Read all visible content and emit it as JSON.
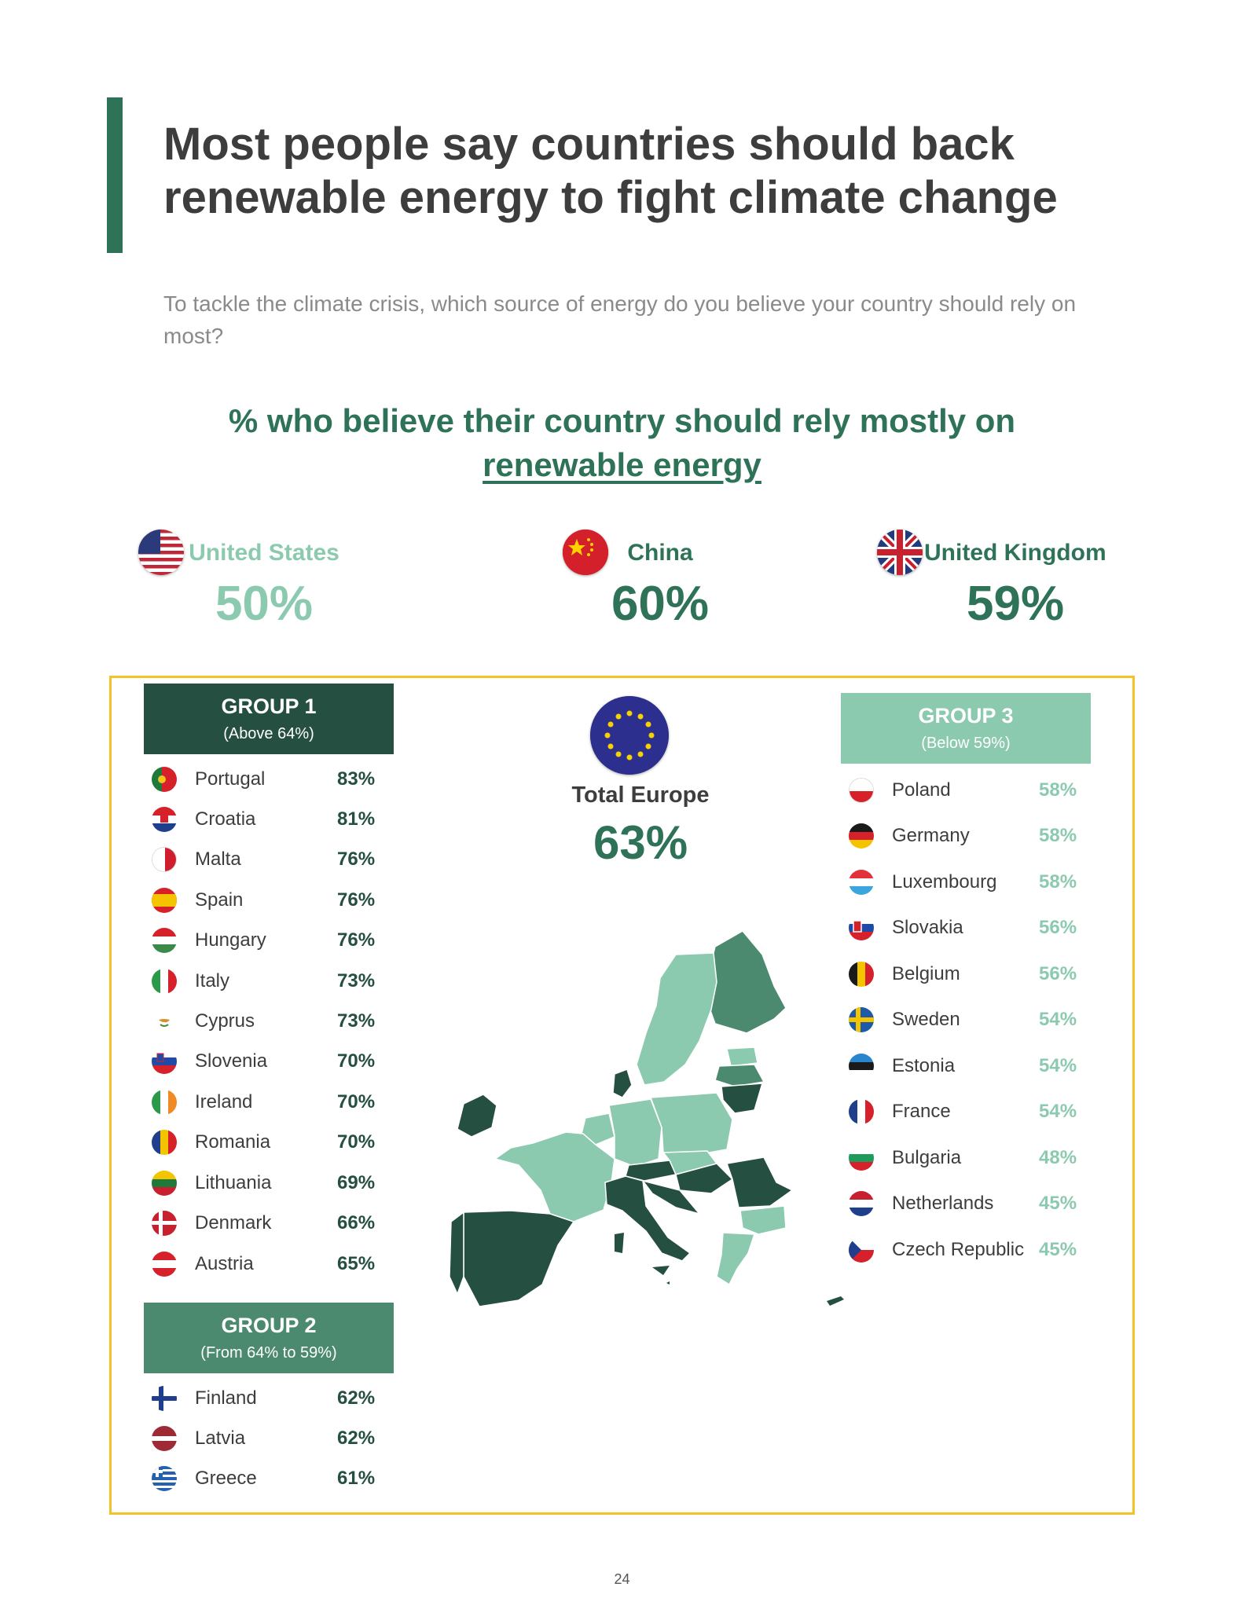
{
  "title": "Most people say countries should back renewable energy to fight climate change",
  "question": "To tackle the climate crisis, which source of energy do you believe your country should rely on most?",
  "subheading": {
    "prefix": "% who believe their country should rely mostly on",
    "emphasis": "renewable energy"
  },
  "highlights": [
    {
      "country": "United States",
      "value": "50%",
      "flag": "us-flag",
      "color": "#8ccab0"
    },
    {
      "country": "China",
      "value": "60%",
      "flag": "china-flag",
      "color": "#2e7358"
    },
    {
      "country": "United Kingdom",
      "value": "59%",
      "flag": "uk-flag",
      "color": "#2e7358"
    }
  ],
  "total_europe": {
    "label": "Total Europe",
    "value": "63%",
    "icon": "eu-flag-icon"
  },
  "groups": [
    {
      "title": "GROUP 1",
      "range": "(Above 64%)",
      "color": "#244f41",
      "rows": [
        {
          "country": "Portugal",
          "value": "83%"
        },
        {
          "country": "Croatia",
          "value": "81%"
        },
        {
          "country": "Malta",
          "value": "76%"
        },
        {
          "country": "Spain",
          "value": "76%"
        },
        {
          "country": "Hungary",
          "value": "76%"
        },
        {
          "country": "Italy",
          "value": "73%"
        },
        {
          "country": "Cyprus",
          "value": "73%"
        },
        {
          "country": "Slovenia",
          "value": "70%"
        },
        {
          "country": "Ireland",
          "value": "70%"
        },
        {
          "country": "Romania",
          "value": "70%"
        },
        {
          "country": "Lithuania",
          "value": "69%"
        },
        {
          "country": "Denmark",
          "value": "66%"
        },
        {
          "country": "Austria",
          "value": "65%"
        }
      ]
    },
    {
      "title": "GROUP 2",
      "range": "(From 64% to 59%)",
      "color": "#4b8a6f",
      "rows": [
        {
          "country": "Finland",
          "value": "62%"
        },
        {
          "country": "Latvia",
          "value": "62%"
        },
        {
          "country": "Greece",
          "value": "61%"
        }
      ]
    },
    {
      "title": "GROUP 3",
      "range": "(Below 59%)",
      "color": "#8ccab0",
      "rows": [
        {
          "country": "Poland",
          "value": "58%"
        },
        {
          "country": "Germany",
          "value": "58%"
        },
        {
          "country": "Luxembourg",
          "value": "58%"
        },
        {
          "country": "Slovakia",
          "value": "56%"
        },
        {
          "country": "Belgium",
          "value": "56%"
        },
        {
          "country": "Sweden",
          "value": "54%"
        },
        {
          "country": "Estonia",
          "value": "54%"
        },
        {
          "country": "France",
          "value": "54%"
        },
        {
          "country": "Bulgaria",
          "value": "48%"
        },
        {
          "country": "Netherlands",
          "value": "45%"
        },
        {
          "country": "Czech Republic",
          "value": "45%"
        }
      ]
    }
  ],
  "page_number": "24",
  "colors": {
    "accent": "#2e7358",
    "dark": "#244f41",
    "mid": "#4b8a6f",
    "light": "#8ccab0",
    "frame": "#f2c22b"
  }
}
